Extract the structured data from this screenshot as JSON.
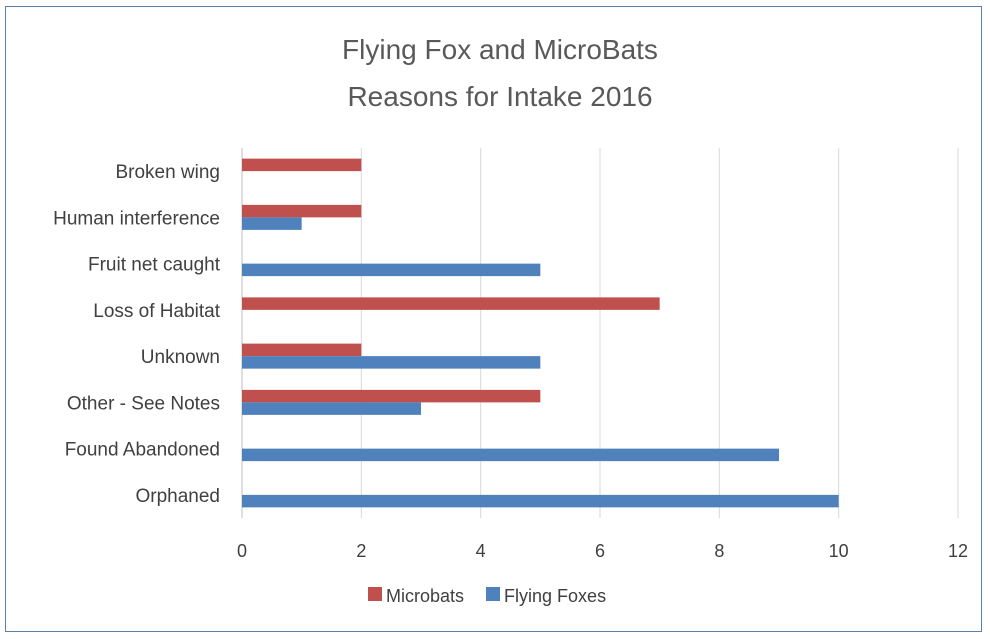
{
  "chart_data": {
    "type": "bar",
    "orientation": "horizontal",
    "title_lines": [
      "Flying Fox and MicroBats",
      "Reasons for Intake 2016"
    ],
    "categories": [
      "Broken wing",
      "Human interference",
      "Fruit net caught",
      "Loss of Habitat",
      "Unknown",
      "Other - See Notes",
      "Found Abandoned",
      "Orphaned"
    ],
    "series": [
      {
        "name": "Microbats",
        "color": "#c0504d",
        "values": [
          2,
          2,
          0,
          7,
          2,
          5,
          0,
          0
        ]
      },
      {
        "name": "Flying Foxes",
        "color": "#4f81bd",
        "values": [
          0,
          1,
          5,
          0,
          5,
          3,
          9,
          10
        ]
      }
    ],
    "xlim": [
      0,
      12
    ],
    "xticks": [
      "0",
      "2",
      "4",
      "6",
      "8",
      "10",
      "12"
    ],
    "grid": true,
    "legend_position": "bottom"
  }
}
